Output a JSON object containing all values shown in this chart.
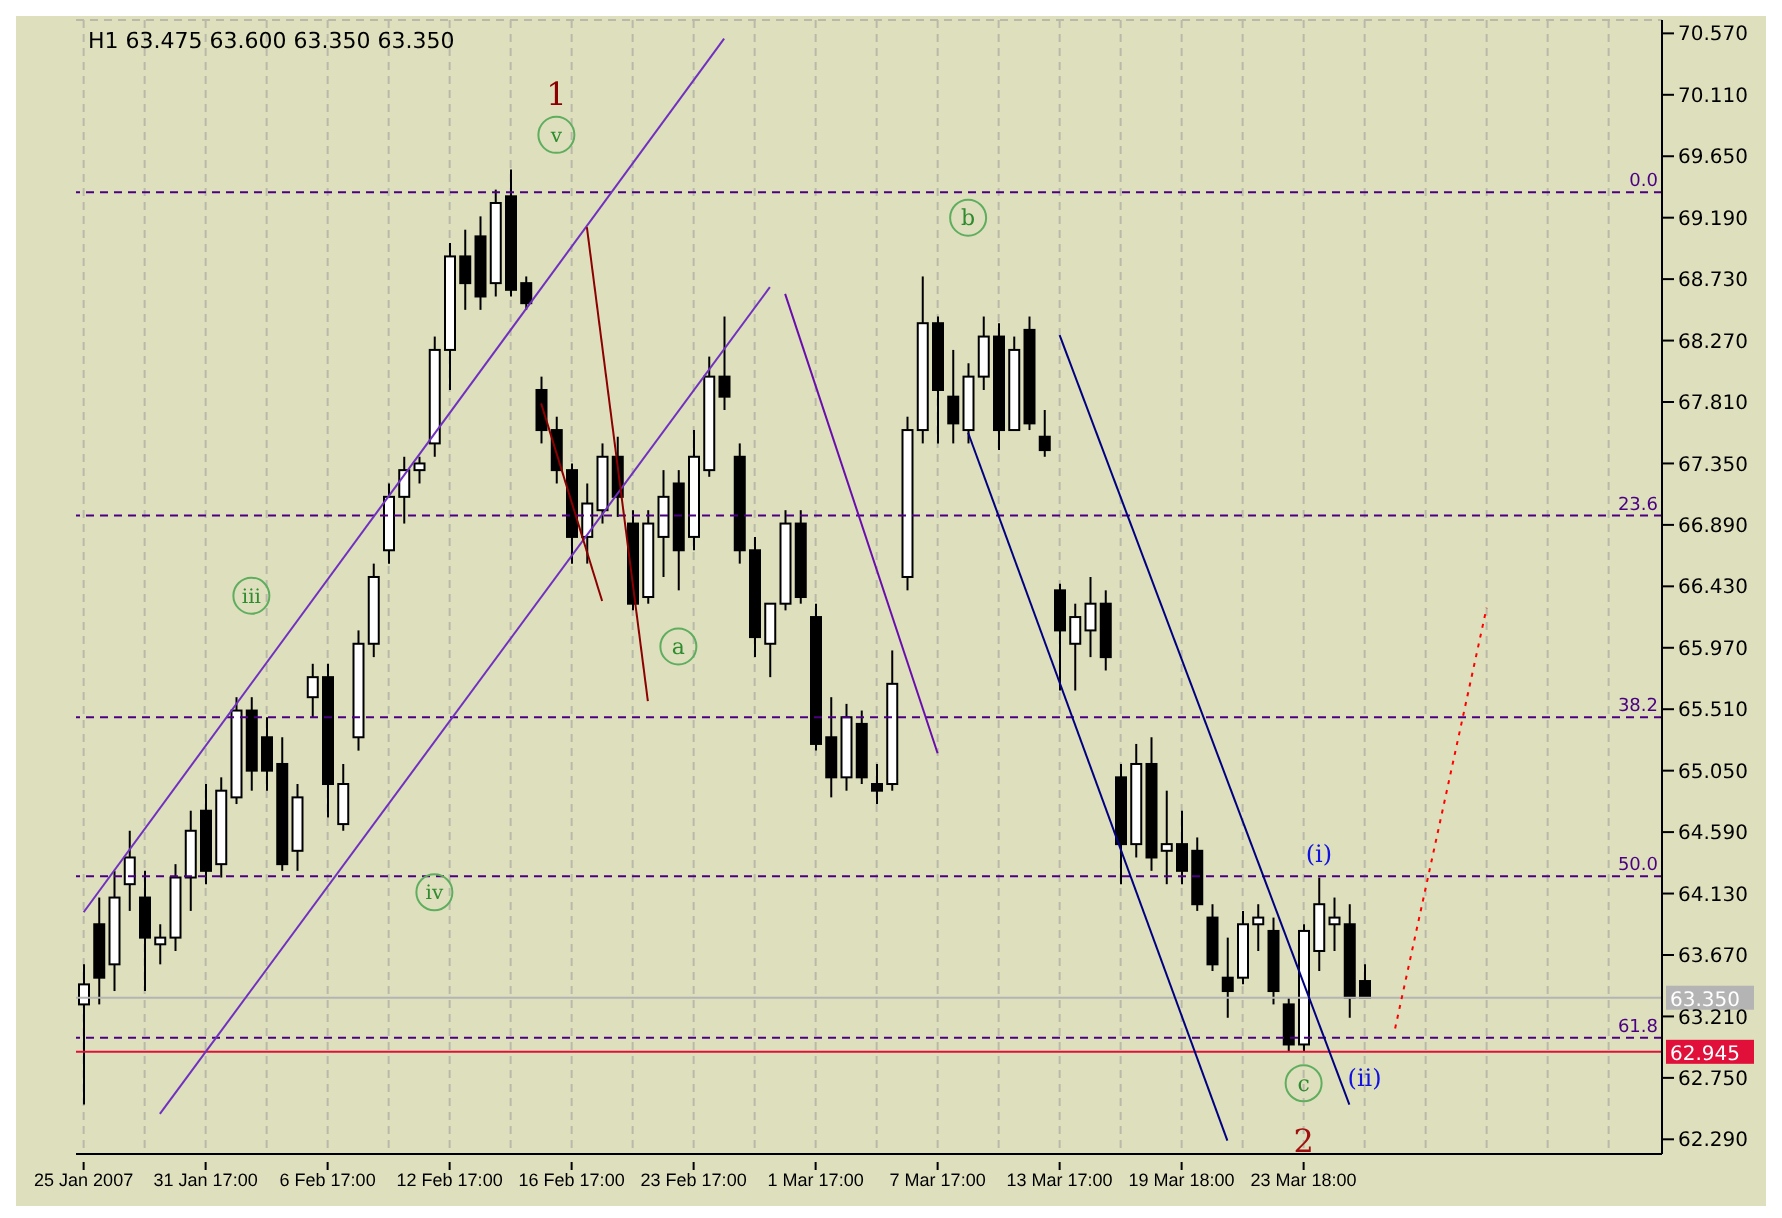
{
  "chart_data": {
    "type": "candlestick",
    "title": "H1  63.475 63.600 63.350 63.350",
    "categories": [
      "25 Jan 2007",
      null,
      null,
      null,
      null,
      null,
      null,
      null,
      "31 Jan 17:00",
      null,
      null,
      null,
      null,
      null,
      null,
      null,
      "6 Feb 17:00",
      null,
      null,
      null,
      null,
      null,
      null,
      null,
      "12 Feb 17:00",
      null,
      null,
      null,
      null,
      null,
      null,
      null,
      "16 Feb 17:00",
      null,
      null,
      null,
      null,
      null,
      null,
      null,
      "23 Feb 17:00",
      null,
      null,
      null,
      null,
      null,
      null,
      null,
      "1 Mar 17:00",
      null,
      null,
      null,
      null,
      null,
      null,
      null,
      "7 Mar 17:00",
      null,
      null,
      null,
      null,
      null,
      null,
      null,
      "13 Mar 17:00",
      null,
      null,
      null,
      null,
      null,
      null,
      null,
      "19 Mar 18:00",
      null,
      null,
      null,
      null,
      null,
      null,
      null,
      "23 Mar 18:00",
      null,
      null,
      null,
      null,
      null,
      null,
      null,
      null,
      null,
      null,
      null,
      null,
      null,
      null,
      null,
      null,
      null,
      null,
      null,
      null,
      null,
      null,
      null
    ],
    "ohlc": [
      [
        63.3,
        63.6,
        62.55,
        63.45
      ],
      [
        63.9,
        64.1,
        63.3,
        63.5
      ],
      [
        63.6,
        64.3,
        63.4,
        64.1
      ],
      [
        64.2,
        64.6,
        64.0,
        64.4
      ],
      [
        64.1,
        64.3,
        63.4,
        63.8
      ],
      [
        63.75,
        63.9,
        63.6,
        63.8
      ],
      [
        63.8,
        64.35,
        63.7,
        64.25
      ],
      [
        64.25,
        64.75,
        64.0,
        64.6
      ],
      [
        64.75,
        64.95,
        64.2,
        64.3
      ],
      [
        64.35,
        65.0,
        64.25,
        64.9
      ],
      [
        64.85,
        65.6,
        64.8,
        65.5
      ],
      [
        65.5,
        65.6,
        64.9,
        65.05
      ],
      [
        65.3,
        65.45,
        64.9,
        65.05
      ],
      [
        65.1,
        65.3,
        64.3,
        64.35
      ],
      [
        64.45,
        64.95,
        64.3,
        64.85
      ],
      [
        65.6,
        65.85,
        65.45,
        65.75
      ],
      [
        65.75,
        65.85,
        64.7,
        64.95
      ],
      [
        64.65,
        65.1,
        64.6,
        64.95
      ],
      [
        65.3,
        66.1,
        65.2,
        66.0
      ],
      [
        66.0,
        66.6,
        65.9,
        66.5
      ],
      [
        66.7,
        67.2,
        66.6,
        67.1
      ],
      [
        67.1,
        67.4,
        66.9,
        67.3
      ],
      [
        67.3,
        67.4,
        67.2,
        67.35
      ],
      [
        67.5,
        68.3,
        67.4,
        68.2
      ],
      [
        68.2,
        69.0,
        67.9,
        68.9
      ],
      [
        68.9,
        69.1,
        68.5,
        68.7
      ],
      [
        69.05,
        69.2,
        68.5,
        68.6
      ],
      [
        68.7,
        69.4,
        68.6,
        69.3
      ],
      [
        69.35,
        69.55,
        68.6,
        68.65
      ],
      [
        68.7,
        68.75,
        68.5,
        68.55
      ],
      [
        67.9,
        68.0,
        67.5,
        67.6
      ],
      [
        67.6,
        67.7,
        67.2,
        67.3
      ],
      [
        67.3,
        67.35,
        66.6,
        66.8
      ],
      [
        66.8,
        67.2,
        66.6,
        67.05
      ],
      [
        67.0,
        67.5,
        66.9,
        67.4
      ],
      [
        67.4,
        67.55,
        66.95,
        67.1
      ],
      [
        66.9,
        67.0,
        66.25,
        66.3
      ],
      [
        66.35,
        67.0,
        66.3,
        66.9
      ],
      [
        66.8,
        67.3,
        66.5,
        67.1
      ],
      [
        67.2,
        67.3,
        66.4,
        66.7
      ],
      [
        66.8,
        67.6,
        66.7,
        67.4
      ],
      [
        67.3,
        68.15,
        67.25,
        68.0
      ],
      [
        68.0,
        68.45,
        67.75,
        67.85
      ],
      [
        67.4,
        67.5,
        66.6,
        66.7
      ],
      [
        66.7,
        66.8,
        65.9,
        66.05
      ],
      [
        66.0,
        66.3,
        65.75,
        66.3
      ],
      [
        66.3,
        67.0,
        66.25,
        66.9
      ],
      [
        66.9,
        67.0,
        66.3,
        66.35
      ],
      [
        66.2,
        66.3,
        65.2,
        65.25
      ],
      [
        65.3,
        65.6,
        64.85,
        65.0
      ],
      [
        65.0,
        65.55,
        64.9,
        65.45
      ],
      [
        65.4,
        65.5,
        64.95,
        65.0
      ],
      [
        64.95,
        65.1,
        64.8,
        64.9
      ],
      [
        64.95,
        65.95,
        64.9,
        65.7
      ],
      [
        66.5,
        67.7,
        66.4,
        67.6
      ],
      [
        67.6,
        68.75,
        67.5,
        68.4
      ],
      [
        68.4,
        68.45,
        67.5,
        67.9
      ],
      [
        67.85,
        68.2,
        67.5,
        67.65
      ],
      [
        67.6,
        68.1,
        67.5,
        68.0
      ],
      [
        68.0,
        68.45,
        67.9,
        68.3
      ],
      [
        68.3,
        68.4,
        67.45,
        67.6
      ],
      [
        67.6,
        68.3,
        67.6,
        68.2
      ],
      [
        68.35,
        68.45,
        67.6,
        67.65
      ],
      [
        67.55,
        67.75,
        67.4,
        67.45
      ],
      [
        66.4,
        66.45,
        65.65,
        66.1
      ],
      [
        66.0,
        66.3,
        65.65,
        66.2
      ],
      [
        66.1,
        66.5,
        65.9,
        66.3
      ],
      [
        66.3,
        66.4,
        65.8,
        65.9
      ],
      [
        65.0,
        65.1,
        64.2,
        64.5
      ],
      [
        64.5,
        65.25,
        64.4,
        65.1
      ],
      [
        65.1,
        65.3,
        64.3,
        64.4
      ],
      [
        64.45,
        64.9,
        64.2,
        64.5
      ],
      [
        64.5,
        64.75,
        64.2,
        64.3
      ],
      [
        64.45,
        64.55,
        64.0,
        64.05
      ],
      [
        63.95,
        64.05,
        63.55,
        63.6
      ],
      [
        63.5,
        63.8,
        63.2,
        63.4
      ],
      [
        63.5,
        64.0,
        63.45,
        63.9
      ],
      [
        63.9,
        64.05,
        63.7,
        63.95
      ],
      [
        63.85,
        63.95,
        63.3,
        63.4
      ],
      [
        63.3,
        63.35,
        62.95,
        63.0
      ],
      [
        63.0,
        63.9,
        62.95,
        63.85
      ],
      [
        63.7,
        64.25,
        63.55,
        64.05
      ],
      [
        63.9,
        64.1,
        63.7,
        63.95
      ],
      [
        63.9,
        64.05,
        63.2,
        63.35
      ],
      [
        63.475,
        63.6,
        63.35,
        63.35
      ],
      null,
      null,
      null,
      null,
      null,
      null,
      null,
      null,
      null,
      null,
      null,
      null,
      null,
      null,
      null,
      null,
      null,
      null,
      null
    ],
    "series": [
      {
        "type": "line",
        "color": "#7030c0",
        "values": [
          63.99,
          null,
          null,
          null,
          null,
          null,
          null,
          null,
          null,
          null,
          null,
          null,
          null,
          null,
          null,
          null,
          null,
          null,
          null,
          null,
          null,
          null,
          null,
          null,
          null,
          null,
          null,
          null,
          null,
          null,
          null,
          null,
          null,
          null,
          null,
          null,
          null,
          null,
          null,
          null,
          null,
          null,
          70.53,
          null,
          null,
          null,
          null,
          null,
          null,
          null,
          null,
          null,
          null,
          null,
          null,
          null,
          null,
          null,
          null,
          null,
          null,
          null,
          null,
          null,
          null,
          null,
          null,
          null,
          null,
          null,
          null,
          null,
          null,
          null,
          null,
          null,
          null,
          null,
          null,
          null,
          null,
          null,
          null,
          null,
          null,
          null,
          null,
          null,
          null,
          null,
          null,
          null,
          null,
          null,
          null,
          null,
          null,
          null,
          null,
          null,
          null,
          null,
          null,
          null
        ]
      },
      {
        "type": "line",
        "color": "#7030c0",
        "values": [
          null,
          null,
          null,
          null,
          null,
          62.48,
          null,
          null,
          null,
          null,
          null,
          null,
          null,
          null,
          null,
          null,
          null,
          null,
          null,
          null,
          null,
          null,
          null,
          null,
          null,
          null,
          null,
          null,
          null,
          null,
          null,
          null,
          null,
          null,
          null,
          null,
          null,
          null,
          null,
          null,
          null,
          null,
          null,
          null,
          null,
          68.67,
          null,
          null,
          null,
          null,
          null,
          null,
          null,
          null,
          null,
          null,
          null,
          null,
          null,
          null,
          null,
          null,
          null,
          null,
          null,
          null,
          null,
          null,
          null,
          null,
          null,
          null,
          null,
          null,
          null,
          null,
          null,
          null,
          null,
          null,
          null,
          null,
          null,
          null,
          null,
          null,
          null,
          null,
          null,
          null,
          null,
          null,
          null,
          null,
          null,
          null,
          null,
          null,
          null,
          null,
          null,
          null,
          null,
          null
        ]
      },
      {
        "type": "line",
        "color": "#8b0000",
        "values": [
          null,
          null,
          null,
          null,
          null,
          null,
          null,
          null,
          null,
          null,
          null,
          null,
          null,
          null,
          null,
          null,
          null,
          null,
          null,
          null,
          null,
          null,
          null,
          null,
          null,
          null,
          null,
          null,
          null,
          null,
          null,
          null,
          null,
          69.12,
          null,
          null,
          null,
          65.57,
          null,
          null,
          null,
          null,
          null,
          null,
          null,
          null,
          null,
          null,
          null,
          null,
          null,
          null,
          null,
          null,
          null,
          null,
          null,
          null,
          null,
          null,
          null,
          null,
          null,
          null,
          null,
          null,
          null,
          null,
          null,
          null,
          null,
          null,
          null,
          null,
          null,
          null,
          null,
          null,
          null,
          null,
          null,
          null,
          null,
          null,
          null,
          null,
          null,
          null,
          null,
          null,
          null,
          null,
          null,
          null,
          null,
          null,
          null,
          null,
          null,
          null,
          null,
          null,
          null,
          null
        ]
      },
      {
        "type": "line",
        "color": "#8b0000",
        "values": [
          null,
          null,
          null,
          null,
          null,
          null,
          null,
          null,
          null,
          null,
          null,
          null,
          null,
          null,
          null,
          null,
          null,
          null,
          null,
          null,
          null,
          null,
          null,
          null,
          null,
          null,
          null,
          null,
          null,
          null,
          67.8,
          null,
          null,
          null,
          66.32,
          null,
          null,
          null,
          null,
          null,
          null,
          null,
          null,
          null,
          null,
          null,
          null,
          null,
          null,
          null,
          null,
          null,
          null,
          null,
          null,
          null,
          null,
          null,
          null,
          null,
          null,
          null,
          null,
          null,
          null,
          null,
          null,
          null,
          null,
          null,
          null,
          null,
          null,
          null,
          null,
          null,
          null,
          null,
          null,
          null,
          null,
          null,
          null,
          null,
          null,
          null,
          null,
          null,
          null,
          null,
          null,
          null,
          null,
          null,
          null,
          null,
          null,
          null,
          null,
          null,
          null,
          null,
          null,
          null
        ]
      },
      {
        "type": "line",
        "color": "#6a0dad",
        "values": [
          null,
          null,
          null,
          null,
          null,
          null,
          null,
          null,
          null,
          null,
          null,
          null,
          null,
          null,
          null,
          null,
          null,
          null,
          null,
          null,
          null,
          null,
          null,
          null,
          null,
          null,
          null,
          null,
          null,
          null,
          null,
          null,
          null,
          null,
          null,
          null,
          null,
          null,
          null,
          null,
          null,
          null,
          null,
          null,
          null,
          null,
          68.62,
          null,
          null,
          null,
          null,
          null,
          null,
          null,
          null,
          null,
          65.18,
          null,
          null,
          null,
          null,
          null,
          null,
          null,
          null,
          null,
          null,
          null,
          null,
          null,
          null,
          null,
          null,
          null,
          null,
          null,
          null,
          null,
          null,
          null,
          null,
          null,
          null,
          null,
          null,
          null,
          null,
          null,
          null,
          null,
          null,
          null,
          null,
          null,
          null,
          null,
          null,
          null,
          null,
          null,
          null,
          null,
          null,
          null
        ]
      },
      {
        "type": "line",
        "color": "#000080",
        "values": [
          null,
          null,
          null,
          null,
          null,
          null,
          null,
          null,
          null,
          null,
          null,
          null,
          null,
          null,
          null,
          null,
          null,
          null,
          null,
          null,
          null,
          null,
          null,
          null,
          null,
          null,
          null,
          null,
          null,
          null,
          null,
          null,
          null,
          null,
          null,
          null,
          null,
          null,
          null,
          null,
          null,
          null,
          null,
          null,
          null,
          null,
          null,
          null,
          null,
          null,
          null,
          null,
          null,
          null,
          null,
          null,
          null,
          null,
          null,
          null,
          null,
          null,
          null,
          null,
          68.31,
          null,
          null,
          null,
          null,
          null,
          null,
          null,
          null,
          null,
          null,
          null,
          null,
          null,
          null,
          null,
          null,
          null,
          null,
          62.55,
          null,
          null,
          null,
          null,
          null,
          null,
          null,
          null,
          null,
          null,
          null,
          null,
          null,
          null,
          null,
          null,
          null,
          null,
          null,
          null
        ]
      },
      {
        "type": "line",
        "color": "#000080",
        "values": [
          null,
          null,
          null,
          null,
          null,
          null,
          null,
          null,
          null,
          null,
          null,
          null,
          null,
          null,
          null,
          null,
          null,
          null,
          null,
          null,
          null,
          null,
          null,
          null,
          null,
          null,
          null,
          null,
          null,
          null,
          null,
          null,
          null,
          null,
          null,
          null,
          null,
          null,
          null,
          null,
          null,
          null,
          null,
          null,
          null,
          null,
          null,
          null,
          null,
          null,
          null,
          null,
          null,
          null,
          null,
          null,
          null,
          null,
          67.58,
          null,
          null,
          null,
          null,
          null,
          null,
          null,
          null,
          null,
          null,
          null,
          null,
          null,
          null,
          null,
          null,
          62.28,
          null,
          null,
          null,
          null,
          null,
          null,
          null,
          null,
          null,
          null,
          null,
          null,
          null,
          null,
          null,
          null,
          null,
          null,
          null,
          null,
          null,
          null,
          null,
          null,
          null,
          null,
          null,
          null
        ]
      },
      {
        "type": "line",
        "color": "#ff0000",
        "line_style": "dotted",
        "values": [
          null,
          null,
          null,
          null,
          null,
          null,
          null,
          null,
          null,
          null,
          null,
          null,
          null,
          null,
          null,
          null,
          null,
          null,
          null,
          null,
          null,
          null,
          null,
          null,
          null,
          null,
          null,
          null,
          null,
          null,
          null,
          null,
          null,
          null,
          null,
          null,
          null,
          null,
          null,
          null,
          null,
          null,
          null,
          null,
          null,
          null,
          null,
          null,
          null,
          null,
          null,
          null,
          null,
          null,
          null,
          null,
          null,
          null,
          null,
          null,
          null,
          null,
          null,
          null,
          null,
          null,
          null,
          null,
          null,
          null,
          null,
          null,
          null,
          null,
          null,
          null,
          null,
          null,
          null,
          null,
          null,
          null,
          null,
          null,
          null,
          null,
          63.12,
          null,
          null,
          null,
          null,
          null,
          66.27,
          null,
          null,
          null,
          null,
          null,
          null,
          null,
          null,
          null,
          null,
          null
        ]
      }
    ],
    "ylim": [
      62.18,
      70.67
    ],
    "yticks": [
      {
        "value": 62.29,
        "label": "62.290"
      },
      {
        "value": 62.75,
        "label": "62.750"
      },
      {
        "value": 63.21,
        "label": "63.210"
      },
      {
        "value": 63.67,
        "label": "63.670"
      },
      {
        "value": 64.13,
        "label": "64.130"
      },
      {
        "value": 64.59,
        "label": "64.590"
      },
      {
        "value": 65.05,
        "label": "65.050"
      },
      {
        "value": 65.51,
        "label": "65.510"
      },
      {
        "value": 65.97,
        "label": "65.970"
      },
      {
        "value": 66.43,
        "label": "66.430"
      },
      {
        "value": 66.89,
        "label": "66.890"
      },
      {
        "value": 67.35,
        "label": "67.350"
      },
      {
        "value": 67.81,
        "label": "67.810"
      },
      {
        "value": 68.27,
        "label": "68.270"
      },
      {
        "value": 68.73,
        "label": "68.730"
      },
      {
        "value": 69.19,
        "label": "69.190"
      },
      {
        "value": 69.65,
        "label": "69.650"
      },
      {
        "value": 70.11,
        "label": "70.110"
      },
      {
        "value": 70.57,
        "label": "70.570"
      }
    ],
    "grid": true,
    "ref_lines": [
      {
        "axis": "y",
        "value": 69.38,
        "color": "#4b0082",
        "line_style": "dashed"
      },
      {
        "axis": "y",
        "value": 66.96,
        "color": "#4b0082",
        "line_style": "dashed"
      },
      {
        "axis": "y",
        "value": 65.45,
        "color": "#4b0082",
        "line_style": "dashed"
      },
      {
        "axis": "y",
        "value": 64.26,
        "color": "#4b0082",
        "line_style": "dashed"
      },
      {
        "axis": "y",
        "value": 63.05,
        "color": "#4b0082",
        "line_style": "dashed"
      },
      {
        "axis": "y",
        "value": 63.35,
        "label": "63.350",
        "color": "#b4b4b4",
        "line_style": "solid"
      },
      {
        "axis": "y",
        "value": 62.945,
        "label": "62.945",
        "color": "#e0103a",
        "line_style": "solid"
      }
    ],
    "annotations": [
      "1",
      {
        "text": "v",
        "y": 69.81
      },
      {
        "text": "iii",
        "y": 66.36
      },
      {
        "text": "iv",
        "y": 64.14
      },
      {
        "text": "a",
        "y": 65.98
      },
      {
        "text": "b",
        "y": 69.19
      },
      {
        "text": "c",
        "y": 62.71
      },
      "2",
      "(i)",
      "(ii)",
      {
        "text": "0.0",
        "y": 69.38
      },
      {
        "text": "23.6",
        "y": 66.96
      },
      {
        "text": "38.2",
        "y": 65.45
      },
      {
        "text": "50.0",
        "y": 64.26
      },
      {
        "text": "61.8",
        "y": 63.05
      }
    ]
  }
}
